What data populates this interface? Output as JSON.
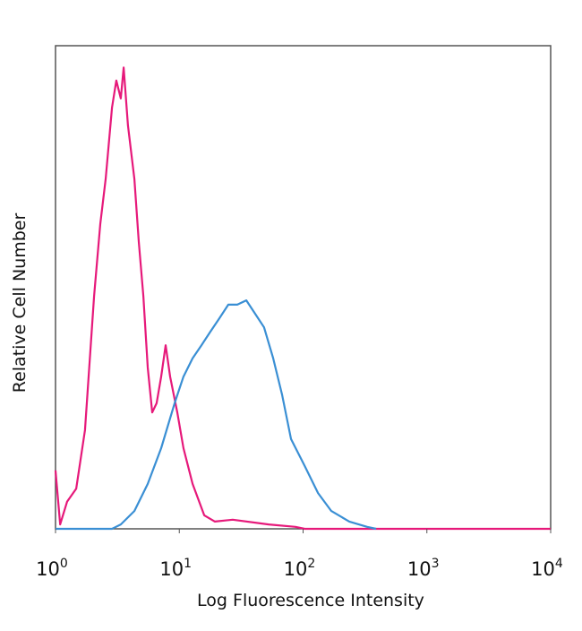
{
  "chart_data": {
    "type": "line",
    "title": "",
    "xlabel": "Log Fluorescence Intensity",
    "ylabel": "Relative Cell Number",
    "xscale": "log",
    "xlim": [
      1,
      10000
    ],
    "ylim": [
      0,
      100
    ],
    "grid": false,
    "legend": "none",
    "x_ticks": [
      {
        "base": "10",
        "exp": "0",
        "value": 1
      },
      {
        "base": "10",
        "exp": "1",
        "value": 10
      },
      {
        "base": "10",
        "exp": "2",
        "value": 100
      },
      {
        "base": "10",
        "exp": "3",
        "value": 1000
      },
      {
        "base": "10",
        "exp": "4",
        "value": 10000
      }
    ],
    "series": [
      {
        "color": "#e6197a",
        "x": [
          1.0,
          1.09,
          1.24,
          1.47,
          1.73,
          2.05,
          2.3,
          2.54,
          2.86,
          3.1,
          3.37,
          3.55,
          3.85,
          4.34,
          4.71,
          5.12,
          5.56,
          6.04,
          6.56,
          7.14,
          7.76,
          8.43,
          9.64,
          10.8,
          12.8,
          15.9,
          19.4,
          27.0,
          52.7,
          86.7,
          103,
          10000
        ],
        "y": [
          12.1,
          0.9,
          5.6,
          8.3,
          20.4,
          48.2,
          63.1,
          72.4,
          87.2,
          92.8,
          89.1,
          95.5,
          83.5,
          72.4,
          59.4,
          48.2,
          33.4,
          24.1,
          26.0,
          31.5,
          38.0,
          31.5,
          24.1,
          16.7,
          9.3,
          2.8,
          1.5,
          1.9,
          0.9,
          0.4,
          0,
          0
        ]
      },
      {
        "color": "#3a8fd4",
        "x": [
          1.0,
          2.86,
          3.37,
          4.34,
          5.56,
          7.14,
          9.16,
          10.8,
          12.8,
          15.1,
          17.8,
          21.1,
          24.9,
          29.4,
          34.8,
          41.0,
          48.4,
          57.3,
          67.6,
          79.8,
          103,
          132,
          169,
          236,
          329,
          389
        ],
        "y": [
          0,
          0,
          0.9,
          3.7,
          9.3,
          16.7,
          26.0,
          31.5,
          35.3,
          38.0,
          40.8,
          43.6,
          46.4,
          46.4,
          47.3,
          44.5,
          41.7,
          35.3,
          27.8,
          18.6,
          13.0,
          7.4,
          3.7,
          1.5,
          0.4,
          0
        ]
      }
    ]
  }
}
